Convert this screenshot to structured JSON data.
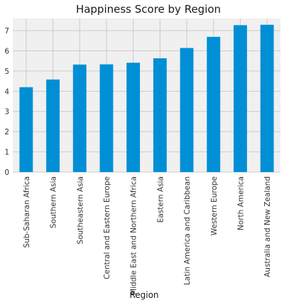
{
  "chart_data": {
    "type": "bar",
    "title": "Happiness Score by Region",
    "xlabel": "Region",
    "ylabel": "",
    "ylim": [
      0,
      7.6
    ],
    "yticks": [
      0,
      1,
      2,
      3,
      4,
      5,
      6,
      7
    ],
    "grid": true,
    "categories": [
      "Sub-Saharan Africa",
      "Southern Asia",
      "Southeastern Asia",
      "Central and Eastern Europe",
      "Middle East and Northern Africa",
      "Eastern Asia",
      "Latin America and Caribbean",
      "Western Europe",
      "North America",
      "Australia and New Zealand"
    ],
    "values": [
      4.2,
      4.58,
      5.32,
      5.33,
      5.41,
      5.63,
      6.14,
      6.69,
      7.27,
      7.29
    ],
    "colors": {
      "bar": "#008fd5",
      "plot_background": "#f0f0f0",
      "grid": "#cbcbcb"
    }
  }
}
